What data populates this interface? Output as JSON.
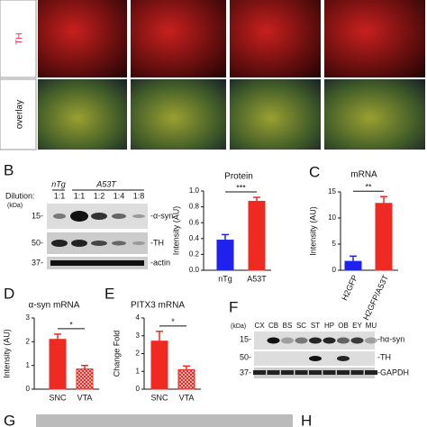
{
  "figure": {
    "row_labels": [
      "TH",
      "overlay"
    ],
    "panel_labels": [
      "B",
      "C",
      "D",
      "E",
      "F",
      "G",
      "H"
    ],
    "blot_b": {
      "groups": [
        "nTg",
        "A53T"
      ],
      "dilution_label": "Dilution:",
      "dilutions": [
        "1:1",
        "1:1",
        "1:2",
        "1:4",
        "1:8"
      ],
      "kda": "(kDa)",
      "markers": [
        "15-",
        "50-",
        "37-"
      ],
      "bands": [
        "-α-syn",
        "-TH",
        "-actin"
      ]
    },
    "blot_f": {
      "kda": "(kDa)",
      "lanes": [
        "CX",
        "CB",
        "BS",
        "SC",
        "ST",
        "HP",
        "OB",
        "EY",
        "MU"
      ],
      "markers": [
        "15-",
        "50-",
        "37-"
      ],
      "bands": [
        "-hα-syn",
        "-TH",
        "-GAPDH"
      ]
    }
  },
  "chart_data": [
    {
      "type": "bar",
      "title": "Protein",
      "ylabel": "Intensity (AU)",
      "categories": [
        "nTg",
        "A53T"
      ],
      "values": [
        0.38,
        0.87
      ],
      "errors": [
        0.07,
        0.05
      ],
      "colors": [
        "#1f22ee",
        "#ee2a22"
      ],
      "hatch": [
        false,
        false
      ],
      "ylim": [
        0,
        1.0
      ],
      "yticks": [
        {
          "value": 0,
          "label": "0.0"
        },
        {
          "value": 0.2,
          "label": "0.2"
        },
        {
          "value": 0.4,
          "label": "0.4"
        },
        {
          "value": 0.6,
          "label": "0.6"
        },
        {
          "value": 0.8,
          "label": "0.8"
        },
        {
          "value": 1.0,
          "label": "1.0"
        }
      ],
      "annotation": "***"
    },
    {
      "type": "bar",
      "title": "mRNA",
      "ylabel": "Intensity (AU)",
      "categories": [
        "H2GFP",
        "H2GFP/A53T"
      ],
      "values": [
        1.7,
        12.8
      ],
      "errors": [
        1.0,
        1.3
      ],
      "colors": [
        "#1f22ee",
        "#ee2a22"
      ],
      "hatch": [
        false,
        false
      ],
      "ylim": [
        0,
        15
      ],
      "yticks": [
        0,
        5,
        10,
        15
      ],
      "annotation": "**"
    },
    {
      "type": "bar",
      "title": "α-syn mRNA",
      "ylabel": "Intensity (AU)",
      "categories": [
        "SNC",
        "VTA"
      ],
      "values": [
        2.1,
        0.85
      ],
      "errors": [
        0.22,
        0.15
      ],
      "colors": [
        "#ee2a22",
        "#ee2a22"
      ],
      "hatch": [
        false,
        true
      ],
      "ylim": [
        0,
        3
      ],
      "yticks": [
        0,
        1,
        2,
        3
      ],
      "annotation": "*"
    },
    {
      "type": "bar",
      "title": "PITX3 mRNA",
      "ylabel": "Change Fold",
      "categories": [
        "SNC",
        "VTA"
      ],
      "values": [
        2.7,
        1.1
      ],
      "errors": [
        0.55,
        0.2
      ],
      "colors": [
        "#ee2a22",
        "#ee2a22"
      ],
      "hatch": [
        false,
        true
      ],
      "ylim": [
        0,
        4
      ],
      "yticks": [
        0,
        1,
        2,
        3,
        4
      ],
      "annotation": "*"
    }
  ]
}
